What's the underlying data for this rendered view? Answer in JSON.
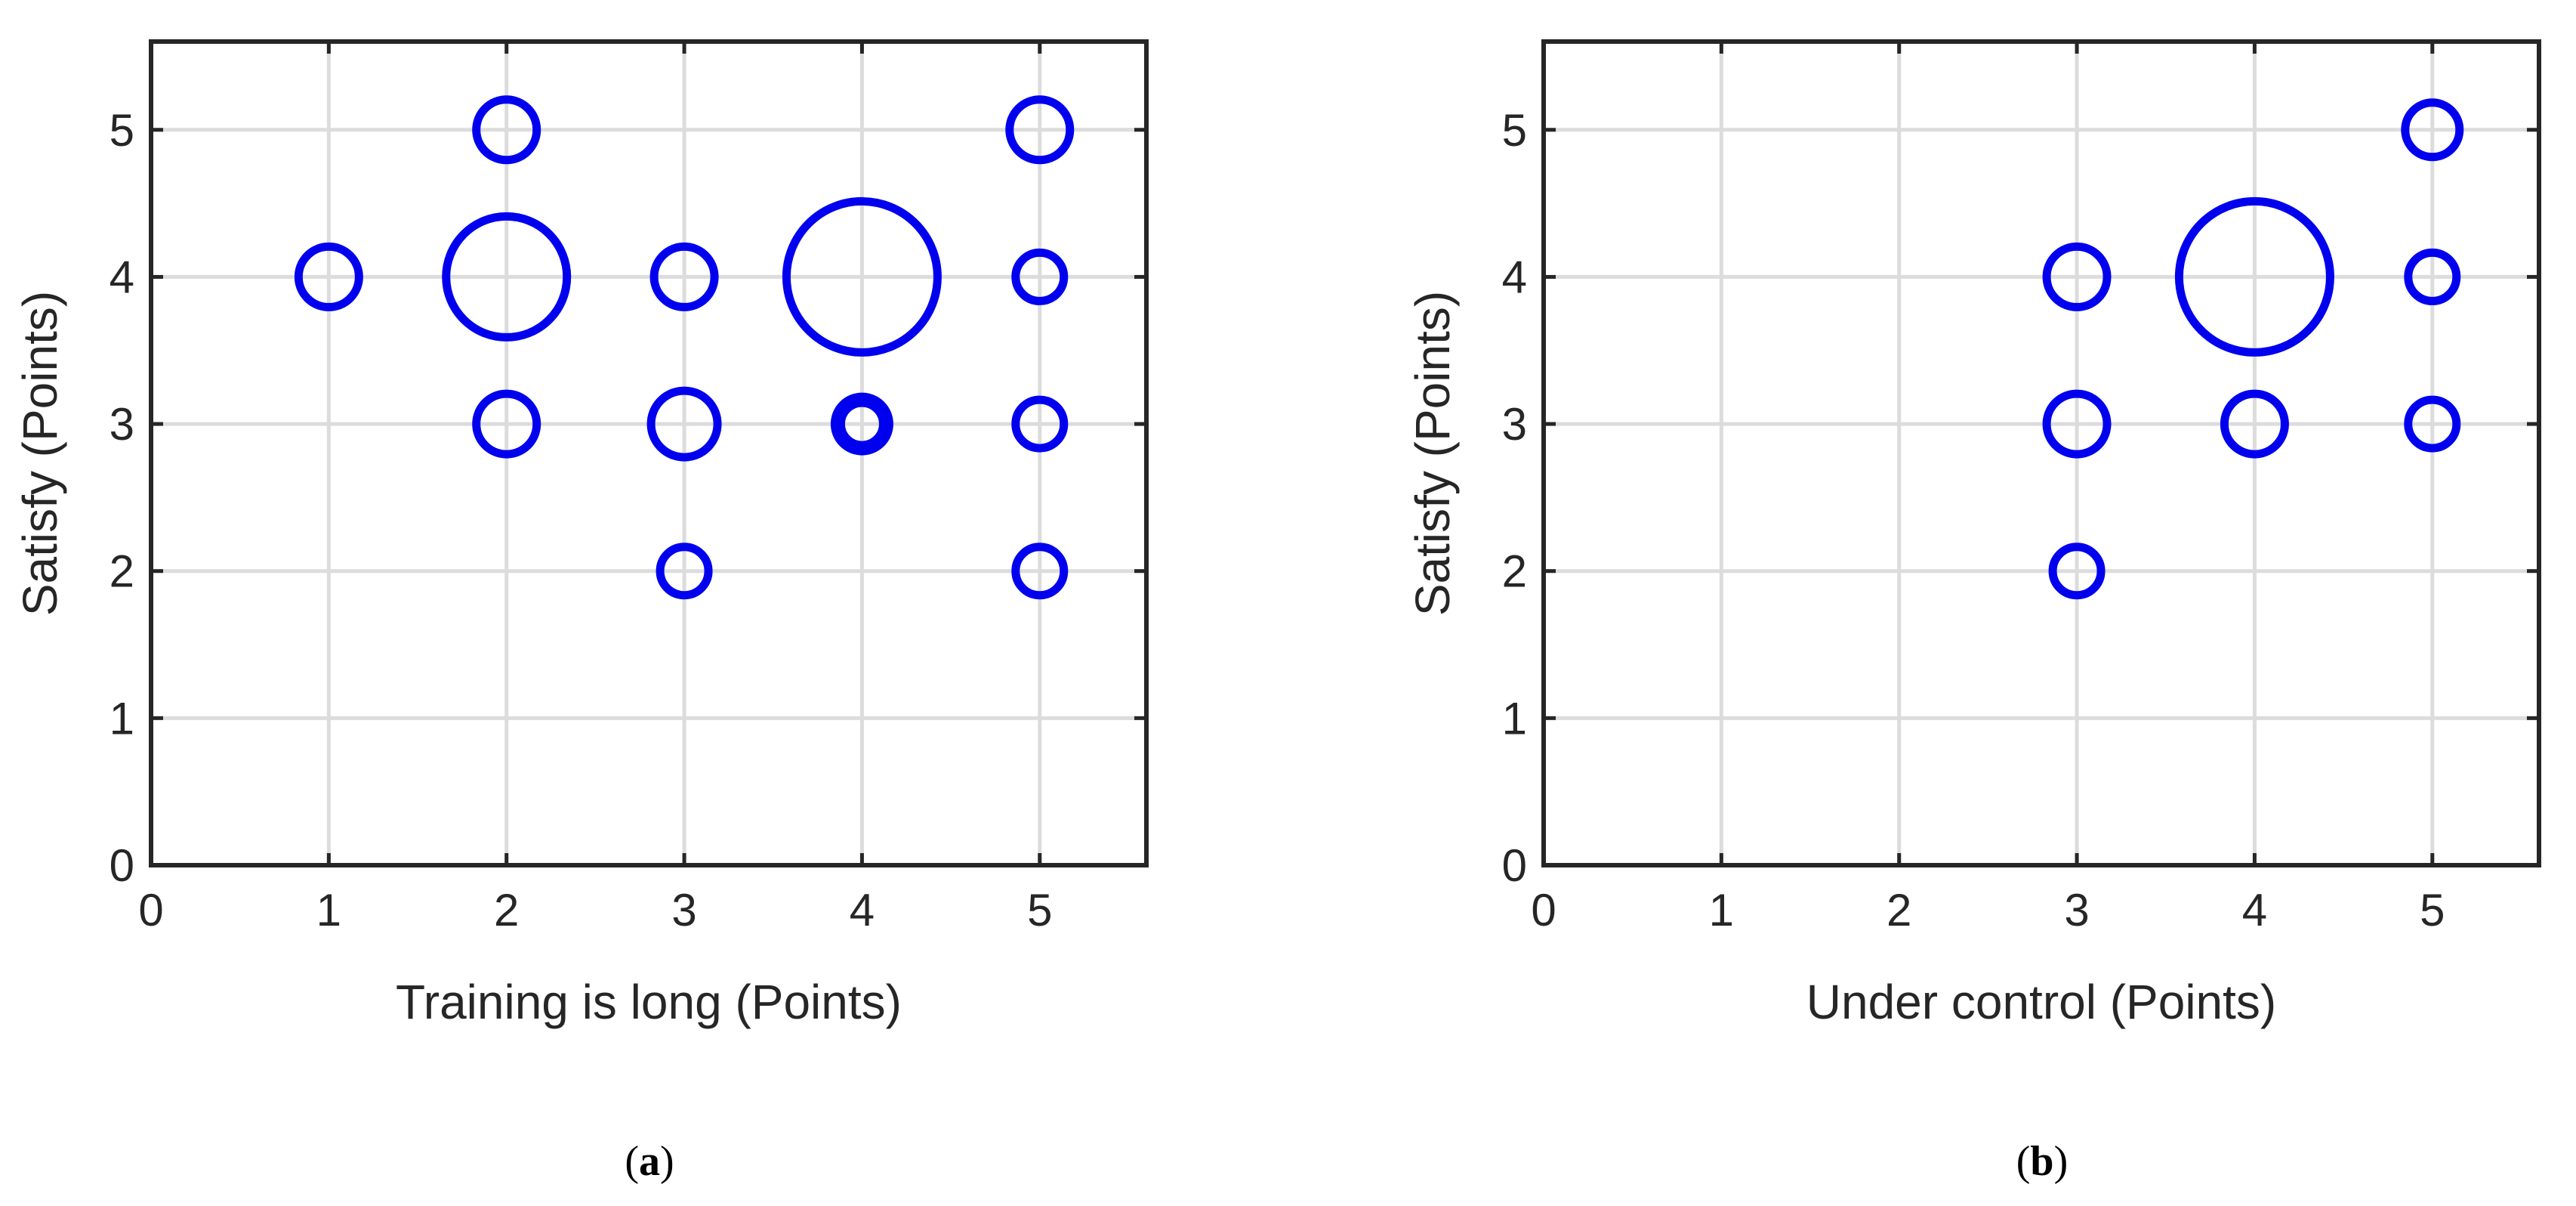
{
  "chart_data": [
    {
      "type": "scatter",
      "panel_label": "a",
      "title": "",
      "xlabel": "Training is long (Points)",
      "ylabel": "Satisfy (Points)",
      "xlim": [
        0,
        5.6
      ],
      "ylim": [
        0,
        5.6
      ],
      "xticks": [
        "0",
        "1",
        "2",
        "3",
        "4",
        "5"
      ],
      "yticks": [
        "0",
        "1",
        "2",
        "3",
        "4",
        "5"
      ],
      "grid": true,
      "marker": "open-circle",
      "marker_color": "#0000ee",
      "points": [
        {
          "x": 1,
          "y": 4,
          "size": 1
        },
        {
          "x": 2,
          "y": 5,
          "size": 1
        },
        {
          "x": 2,
          "y": 4,
          "size": 2
        },
        {
          "x": 2,
          "y": 3,
          "size": 1
        },
        {
          "x": 3,
          "y": 4,
          "size": 1
        },
        {
          "x": 3,
          "y": 3,
          "size": 1.1
        },
        {
          "x": 3,
          "y": 2,
          "size": 0.8
        },
        {
          "x": 4,
          "y": 4,
          "size": 2.5
        },
        {
          "x": 4,
          "y": 3,
          "size": 0.9
        },
        {
          "x": 4,
          "y": 3,
          "size": 0.7
        },
        {
          "x": 5,
          "y": 5,
          "size": 1
        },
        {
          "x": 5,
          "y": 4,
          "size": 0.8
        },
        {
          "x": 5,
          "y": 3,
          "size": 0.8
        },
        {
          "x": 5,
          "y": 2,
          "size": 0.8
        }
      ]
    },
    {
      "type": "scatter",
      "panel_label": "b",
      "title": "",
      "xlabel": "Under control (Points)",
      "ylabel": "Satisfy (Points)",
      "xlim": [
        0,
        5.6
      ],
      "ylim": [
        0,
        5.6
      ],
      "xticks": [
        "0",
        "1",
        "2",
        "3",
        "4",
        "5"
      ],
      "yticks": [
        "0",
        "1",
        "2",
        "3",
        "4",
        "5"
      ],
      "grid": true,
      "marker": "open-circle",
      "marker_color": "#0000ee",
      "points": [
        {
          "x": 3,
          "y": 4,
          "size": 1
        },
        {
          "x": 3,
          "y": 3,
          "size": 1
        },
        {
          "x": 3,
          "y": 2,
          "size": 0.8
        },
        {
          "x": 4,
          "y": 4,
          "size": 2.5
        },
        {
          "x": 4,
          "y": 3,
          "size": 1
        },
        {
          "x": 5,
          "y": 5,
          "size": 0.9
        },
        {
          "x": 5,
          "y": 4,
          "size": 0.8
        },
        {
          "x": 5,
          "y": 3,
          "size": 0.8
        }
      ]
    }
  ]
}
